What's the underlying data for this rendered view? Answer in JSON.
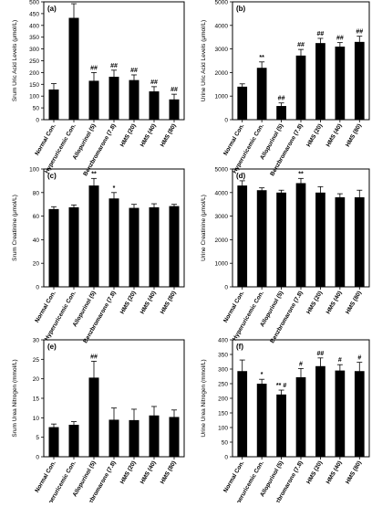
{
  "chart_data": [
    {
      "panel": "(a)",
      "type": "bar",
      "categories": [
        "Normal Con.",
        "Hyperuricemic Con.",
        "Allopurinol (5)",
        "Benzbromarone (7.8)",
        "HMS (20)",
        "HMS (40)",
        "HMS (80)"
      ],
      "values": [
        128,
        432,
        165,
        182,
        168,
        120,
        86
      ],
      "errors": [
        25,
        60,
        35,
        28,
        22,
        20,
        22
      ],
      "annotations": [
        "",
        "**",
        "##",
        "##",
        "##",
        "##",
        "##"
      ],
      "ylabel": "Srum Uric Acid Levels (μmol/L)",
      "ylim": [
        0,
        500
      ],
      "yticks": [
        0,
        50,
        100,
        150,
        200,
        250,
        300,
        350,
        400,
        450,
        500
      ]
    },
    {
      "panel": "(b)",
      "type": "bar",
      "categories": [
        "Normal Con.",
        "Hyperuricemic Con.",
        "Allopurinol (5)",
        "Benzbromarone (7.8)",
        "HMS (20)",
        "HMS (40)",
        "HMS (80)"
      ],
      "values": [
        1400,
        2200,
        580,
        2720,
        3250,
        3100,
        3300
      ],
      "errors": [
        120,
        250,
        130,
        260,
        200,
        170,
        240
      ],
      "annotations": [
        "",
        "**",
        "##",
        "##",
        "##",
        "##",
        "##"
      ],
      "ylabel": "Urine Uric Acid Levels (μmol/L)",
      "ylim": [
        0,
        5000
      ],
      "yticks": [
        0,
        1000,
        2000,
        3000,
        4000,
        5000
      ]
    },
    {
      "panel": "(c)",
      "type": "bar",
      "categories": [
        "Normal Con.",
        "Hyperuricemic Con.",
        "Allopurinol (5)",
        "Benzbromarone (7.8)",
        "HMS (20)",
        "HMS (40)",
        "HMS (80)"
      ],
      "values": [
        66,
        67.5,
        86,
        75,
        67,
        67.5,
        68.5
      ],
      "errors": [
        2,
        2,
        6,
        5,
        3,
        3,
        1.5
      ],
      "annotations": [
        "",
        "",
        "**",
        "*",
        "",
        "",
        ""
      ],
      "ylabel": "Srum Creatinine (μmol/L)",
      "ylim": [
        0,
        100
      ],
      "yticks": [
        0,
        20,
        40,
        60,
        80,
        100
      ]
    },
    {
      "panel": "(d)",
      "type": "bar",
      "categories": [
        "Normal Con.",
        "Hyperuricemic Con.",
        "Allopurinol (5)",
        "Benzbromarone (7.8)",
        "HMS (20)",
        "HMS (40)",
        "HMS (80)"
      ],
      "values": [
        4300,
        4100,
        4000,
        4400,
        4000,
        3800,
        3800
      ],
      "errors": [
        200,
        100,
        100,
        200,
        250,
        150,
        300
      ],
      "annotations": [
        "",
        "",
        "",
        "**",
        "",
        "",
        ""
      ],
      "ylabel": "Urine Creatinine (μmol/L)",
      "ylim": [
        0,
        5000
      ],
      "yticks": [
        0,
        1000,
        2000,
        3000,
        4000,
        5000
      ]
    },
    {
      "panel": "(e)",
      "type": "bar",
      "categories": [
        "Normal Con.",
        "Hyperuricemic Con.",
        "Allopurinol (5)",
        "Benzbromarone (7.8)",
        "HMS (20)",
        "HMS (40)",
        "HMS (80)"
      ],
      "values": [
        7.6,
        8.2,
        20.3,
        9.5,
        9.4,
        10.6,
        10.2
      ],
      "errors": [
        0.8,
        0.8,
        4.2,
        3.0,
        2.8,
        2.3,
        1.8
      ],
      "annotations": [
        "",
        "",
        "##",
        "",
        "",
        "",
        ""
      ],
      "ylabel": "Srum Urea Nitrogen (mmol/L)",
      "ylim": [
        0,
        30
      ],
      "yticks": [
        0,
        5,
        10,
        15,
        20,
        25,
        30
      ]
    },
    {
      "panel": "(f)",
      "type": "bar",
      "categories": [
        "Normal Con.",
        "Hyperuricemic Con.",
        "Allopurinol (5)",
        "Benzbromarone (7.8)",
        "HMS (20)",
        "HMS (40)",
        "HMS (80)"
      ],
      "values": [
        293,
        250,
        213,
        272,
        310,
        295,
        293
      ],
      "errors": [
        38,
        15,
        15,
        30,
        28,
        20,
        30
      ],
      "annotations": [
        "",
        "*",
        "**  #",
        "#",
        "##",
        "#",
        "#"
      ],
      "ylabel": "Urine Urea Nitrogen (mmol/L)",
      "ylim": [
        0,
        400
      ],
      "yticks": [
        0,
        50,
        100,
        150,
        200,
        250,
        300,
        350,
        400
      ]
    }
  ]
}
